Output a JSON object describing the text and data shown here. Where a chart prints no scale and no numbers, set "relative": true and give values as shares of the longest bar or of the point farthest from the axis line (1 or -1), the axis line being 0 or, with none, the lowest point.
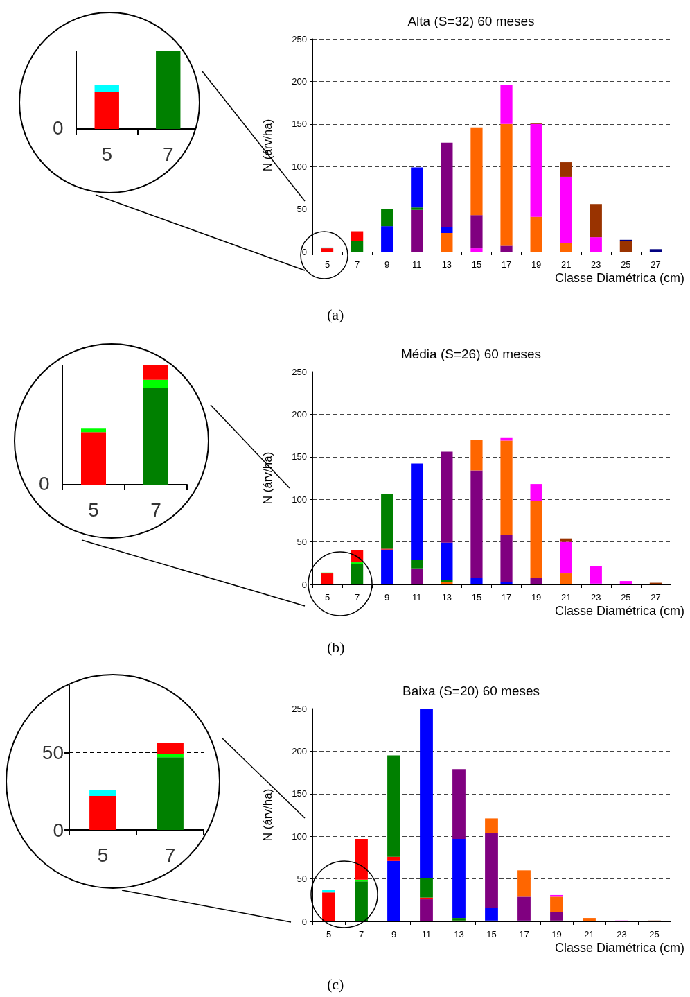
{
  "chart_data": [
    {
      "type": "bar",
      "stacked": true,
      "relative": true,
      "annotations": [
        "0"
      ],
      "categories": [
        "5",
        "7"
      ],
      "grid": false,
      "series": [
        {
          "values": [
            0.48,
            1
          ],
          "colors": [
            "#ff0000",
            "#008000"
          ]
        },
        {
          "values": [
            0.09,
            null
          ],
          "colors": [
            "#00ffff",
            null
          ]
        }
      ]
    },
    {
      "type": "bar",
      "stacked": true,
      "title": "Alta (S=32) 60 meses",
      "xlabel": "Classe Diamétrica (cm)",
      "ylabel": "N (árv/ha)",
      "annotations": [
        "(a)"
      ],
      "categories": [
        "5",
        "7",
        "9",
        "11",
        "13",
        "15",
        "17",
        "19",
        "21",
        "23",
        "25",
        "27"
      ],
      "ylim": [
        0,
        250
      ],
      "yticks": [
        0,
        50,
        100,
        150,
        200,
        250
      ],
      "grid": "y",
      "series": [
        {
          "values": [
            4,
            13,
            30,
            49,
            22,
            4,
            7,
            41,
            10,
            17,
            13,
            3
          ],
          "colors": [
            "#ff0000",
            "#008000",
            "#0000ff",
            "#800080",
            "#ff6600",
            "#ff00ff",
            "#800080",
            "#ff6600",
            "#ff6600",
            "#ff00ff",
            "#993300",
            "#000080"
          ]
        },
        {
          "values": [
            1,
            11,
            20,
            3,
            7,
            39,
            143,
            109,
            78,
            39,
            1,
            null
          ],
          "colors": [
            "#00ffff",
            "#ff0000",
            "#008000",
            "#008000",
            "#0000ff",
            "#800080",
            "#ff6600",
            "#ff00ff",
            "#ff00ff",
            "#993300",
            "#000080",
            null
          ]
        },
        {
          "values": [
            null,
            null,
            null,
            47,
            99,
            103,
            46,
            1,
            17,
            null,
            null,
            null
          ],
          "colors": [
            null,
            null,
            null,
            "#0000ff",
            "#800080",
            "#ff6600",
            "#ff00ff",
            "#993300",
            "#993300",
            null,
            null,
            null
          ]
        }
      ]
    },
    {
      "type": "bar",
      "stacked": true,
      "relative": true,
      "annotations": [
        "0"
      ],
      "categories": [
        "5",
        "7"
      ],
      "grid": false,
      "series": [
        {
          "values": [
            0.44,
            0.81
          ],
          "colors": [
            "#ff0000",
            "#008000"
          ]
        },
        {
          "values": [
            0.03,
            0.07
          ],
          "colors": [
            "#00ff00",
            "#00ff00"
          ]
        },
        {
          "values": [
            null,
            0.12
          ],
          "colors": [
            null,
            "#ff0000"
          ]
        }
      ]
    },
    {
      "type": "bar",
      "stacked": true,
      "title": "Média (S=26) 60 meses",
      "xlabel": "Classe Diamétrica (cm)",
      "ylabel": "N (árv/ha)",
      "annotations": [
        "(b)"
      ],
      "categories": [
        "5",
        "7",
        "9",
        "11",
        "13",
        "15",
        "17",
        "19",
        "21",
        "23",
        "25",
        "27"
      ],
      "ylim": [
        0,
        250
      ],
      "yticks": [
        0,
        50,
        100,
        150,
        200,
        250
      ],
      "grid": "y",
      "series": [
        {
          "values": [
            13,
            24,
            41,
            19,
            3,
            8,
            3,
            8,
            13,
            1,
            4,
            2
          ],
          "colors": [
            "#ff0000",
            "#008000",
            "#0000ff",
            "#800080",
            "#ff6600",
            "#0000ff",
            "#0000ff",
            "#800080",
            "#ff6600",
            "#0000ff",
            "#ff00ff",
            "#993300"
          ]
        },
        {
          "values": [
            1,
            2,
            1,
            10,
            2,
            126,
            55,
            90,
            37,
            21,
            null,
            null
          ],
          "colors": [
            "#00ff00",
            "#00ff00",
            "#ff0000",
            "#008000",
            "#008000",
            "#800080",
            "#800080",
            "#ff6600",
            "#ff00ff",
            "#ff00ff",
            null,
            null
          ]
        },
        {
          "values": [
            null,
            14,
            64,
            113,
            44,
            36,
            111,
            20,
            4,
            null,
            null,
            null
          ],
          "colors": [
            null,
            "#ff0000",
            "#008000",
            "#0000ff",
            "#0000ff",
            "#ff6600",
            "#ff6600",
            "#ff00ff",
            "#993300",
            null,
            null,
            null
          ]
        },
        {
          "values": [
            null,
            null,
            null,
            null,
            107,
            null,
            3,
            null,
            null,
            null,
            null,
            null
          ],
          "colors": [
            null,
            null,
            null,
            null,
            "#800080",
            null,
            "#ff00ff",
            null,
            null,
            null,
            null,
            null
          ]
        }
      ]
    },
    {
      "type": "bar",
      "stacked": true,
      "categories": [
        "5",
        "7"
      ],
      "ylim": [
        0,
        100
      ],
      "yticks": [
        0,
        50
      ],
      "grid": "y",
      "series": [
        {
          "values": [
            22,
            47
          ],
          "colors": [
            "#ff0000",
            "#008000"
          ]
        },
        {
          "values": [
            4,
            2
          ],
          "colors": [
            "#00ffff",
            "#00ff00"
          ]
        },
        {
          "values": [
            null,
            7
          ],
          "colors": [
            null,
            "#ff0000"
          ]
        }
      ]
    },
    {
      "type": "bar",
      "stacked": true,
      "title": "Baixa (S=20) 60 meses",
      "xlabel": "Classe Diamétrica (cm)",
      "ylabel": "N (árv/ha)",
      "annotations": [
        "(c)"
      ],
      "categories": [
        "5",
        "7",
        "9",
        "11",
        "13",
        "15",
        "17",
        "19",
        "21",
        "23",
        "25"
      ],
      "ylim": [
        0,
        250
      ],
      "yticks": [
        0,
        50,
        100,
        150,
        200,
        250
      ],
      "grid": "y",
      "series": [
        {
          "values": [
            34,
            47,
            71,
            26,
            1,
            1,
            1,
            1,
            4,
            1,
            1
          ],
          "colors": [
            "#ff0000",
            "#008000",
            "#0000ff",
            "#800080",
            "#ff6600",
            "#008000",
            "#0000ff",
            "#008000",
            "#ff6600",
            "#ff00ff",
            "#993300"
          ]
        },
        {
          "values": [
            3,
            2,
            5,
            2,
            3,
            15,
            28,
            10,
            null,
            null,
            null
          ],
          "colors": [
            "#00ffff",
            "#00ff00",
            "#ff0000",
            "#ff0000",
            "#008000",
            "#0000ff",
            "#800080",
            "#800080",
            null,
            null,
            null
          ]
        },
        {
          "values": [
            null,
            48,
            119,
            23,
            93,
            88,
            31,
            18,
            null,
            null,
            null
          ],
          "colors": [
            null,
            "#ff0000",
            "#008000",
            "#008000",
            "#0000ff",
            "#800080",
            "#ff6600",
            "#ff6600",
            null,
            null,
            null
          ]
        },
        {
          "values": [
            null,
            null,
            null,
            199,
            82,
            17,
            null,
            2,
            null,
            null,
            null
          ],
          "colors": [
            null,
            null,
            null,
            "#0000ff",
            "#800080",
            "#ff6600",
            null,
            "#ff00ff",
            null,
            null,
            null
          ]
        }
      ]
    }
  ]
}
